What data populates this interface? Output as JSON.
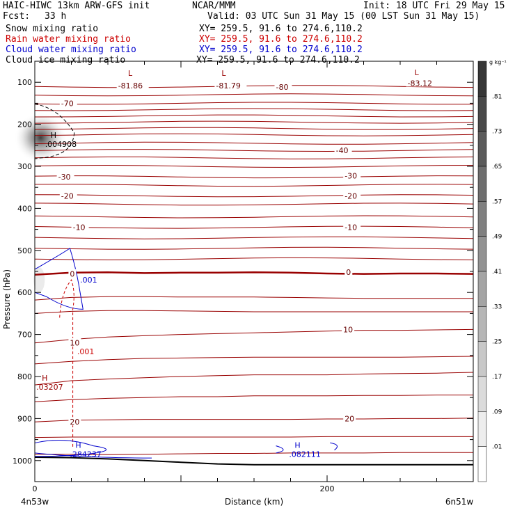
{
  "header": {
    "title_line1": "HAIC-HIWC 13km ARW-GFS init",
    "org": "NCAR/MMM",
    "init": "Init: 18 UTC Fri 29 May 15",
    "fcst_label": "Fcst:",
    "fcst_value": "33 h",
    "valid": "Valid: 03 UTC Sun 31 May 15 (00 LST Sun 31 May 15)",
    "fields": [
      {
        "name": "Snow mixing ratio",
        "xy": "XY= 259.5, 91.6 to 274.6,110.2",
        "color": "#000000"
      },
      {
        "name": "Rain water mixing ratio",
        "xy": "XY= 259.5, 91.6 to 274.6,110.2",
        "color": "#cc0000"
      },
      {
        "name": "Cloud water mixing ratio",
        "xy": "XY= 259.5, 91.6 to 274.6,110.2",
        "color": "#0000cc"
      },
      {
        "name": "Cloud ice mixing ratio",
        "xy": "XY= 259.5, 91.6 to 274.6,110.2",
        "color": "#000000"
      }
    ]
  },
  "chart_data": {
    "type": "contour",
    "xlabel": "Distance (km)",
    "ylabel": "Pressure (hPa)",
    "x_ticks": [
      0,
      200
    ],
    "xlim": [
      0,
      300
    ],
    "ylim": [
      1050,
      50
    ],
    "y_ticks": [
      100,
      200,
      300,
      400,
      500,
      600,
      700,
      800,
      900,
      1000
    ],
    "endpoints": {
      "left": "4n53w",
      "right": "6n51w"
    },
    "colorbar": {
      "unit": "g kg⁻¹",
      "labels": [
        ".81",
        ".73",
        ".65",
        ".57",
        ".49",
        ".41",
        ".33",
        ".25",
        ".17",
        ".09",
        ".01"
      ]
    },
    "temperature_contour_labels": [
      {
        "text": "-81.86",
        "x": 57,
        "p": 108
      },
      {
        "text": "-81.79",
        "x": 124,
        "p": 108
      },
      {
        "text": "-80",
        "x": 165,
        "p": 111
      },
      {
        "text": "-83.12",
        "x": 255,
        "p": 102
      },
      {
        "text": "-70",
        "x": 18,
        "p": 150
      },
      {
        "text": "-40",
        "x": 206,
        "p": 262
      },
      {
        "text": "-30",
        "x": 16,
        "p": 325
      },
      {
        "text": "-30",
        "x": 212,
        "p": 322
      },
      {
        "text": "-20",
        "x": 18,
        "p": 370
      },
      {
        "text": "-20",
        "x": 212,
        "p": 370
      },
      {
        "text": "-10",
        "x": 26,
        "p": 445
      },
      {
        "text": "-10",
        "x": 212,
        "p": 445
      },
      {
        "text": "0",
        "x": 24,
        "p": 556
      },
      {
        "text": "0",
        "x": 213,
        "p": 552
      },
      {
        "text": "10",
        "x": 24,
        "p": 720
      },
      {
        "text": "10",
        "x": 211,
        "p": 688
      },
      {
        "text": "20",
        "x": 24,
        "p": 908
      },
      {
        "text": "20",
        "x": 212,
        "p": 900
      }
    ],
    "extrema": [
      {
        "mark": "L",
        "value": "",
        "x": 60,
        "p": 85,
        "color": "#990000"
      },
      {
        "mark": "L",
        "value": "",
        "x": 124,
        "p": 85,
        "color": "#990000"
      },
      {
        "mark": "L",
        "value": "",
        "x": 256,
        "p": 83,
        "color": "#990000"
      },
      {
        "mark": "H",
        "value": ".004908",
        "x": 7,
        "p": 232,
        "color": "#000000"
      },
      {
        "mark": "H",
        "value": ".03207",
        "x": 1,
        "p": 810,
        "color": "#990000"
      },
      {
        "mark": "H",
        "value": ".284237",
        "x": 24,
        "p": 970,
        "color": "#0000cc"
      },
      {
        "mark": "H",
        "value": ".082111",
        "x": 174,
        "p": 970,
        "color": "#0000cc"
      }
    ],
    "contour_value_labels": [
      {
        "text": ".001",
        "x": 31,
        "p": 570,
        "color": "#0000cc"
      },
      {
        "text": ".001",
        "x": 29,
        "p": 740,
        "color": "#cc0000"
      }
    ]
  }
}
